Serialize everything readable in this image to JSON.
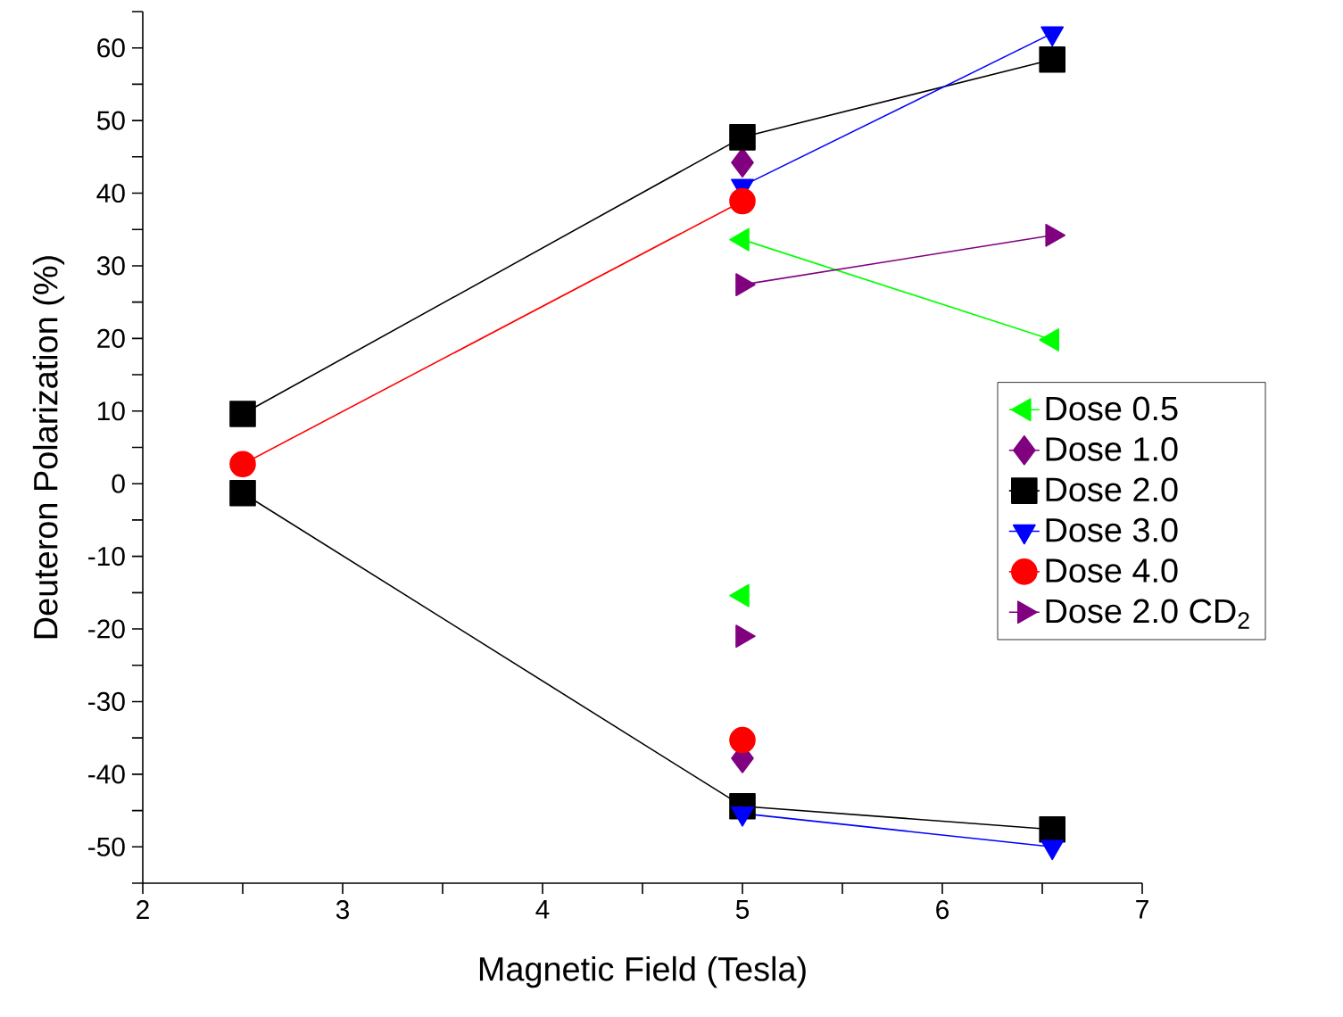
{
  "chart_data": {
    "type": "line",
    "xlabel": "Magnetic Field (Tesla)",
    "ylabel": "Deuteron Polarization (%)",
    "xlim": [
      2,
      7
    ],
    "ylim": [
      -55,
      65
    ],
    "xticks": [
      2,
      {
        "value": 2.5,
        "label": null
      },
      3,
      {
        "value": 3.5,
        "label": null
      },
      4,
      {
        "value": 4.5,
        "label": null
      },
      5,
      {
        "value": 5.5,
        "label": null
      },
      6,
      {
        "value": 6.5,
        "label": null
      },
      7
    ],
    "yticks": [
      {
        "value": -55,
        "label": null
      },
      -50,
      {
        "value": -45,
        "label": null
      },
      -40,
      {
        "value": -35,
        "label": null
      },
      -30,
      {
        "value": -25,
        "label": null
      },
      -20,
      {
        "value": -15,
        "label": null
      },
      -10,
      {
        "value": -5,
        "label": null
      },
      0,
      {
        "value": 5,
        "label": null
      },
      10,
      {
        "value": 15,
        "label": null
      },
      20,
      {
        "value": 25,
        "label": null
      },
      30,
      {
        "value": 35,
        "label": null
      },
      40,
      {
        "value": 45,
        "label": null
      },
      50,
      {
        "value": 55,
        "label": null
      },
      60,
      {
        "value": 65,
        "label": null
      }
    ],
    "legend": "right",
    "grid": false,
    "series": [
      {
        "name": "Dose 0.5",
        "color": "#00ff00",
        "marker": "triangle-left",
        "x": [
          5,
          6.55
        ],
        "values": [
          33.6,
          19.8
        ]
      },
      {
        "name": "Dose 1.0",
        "color": "#800080",
        "marker": "diamond",
        "x": [
          5
        ],
        "values": [
          44.2
        ]
      },
      {
        "name": "Dose 2.0",
        "color": "#000000",
        "marker": "square",
        "x": [
          2.5,
          5,
          6.55
        ],
        "values": [
          9.6,
          47.7,
          58.4
        ]
      },
      {
        "name": "Dose 3.0",
        "color": "#0000ff",
        "marker": "triangle-down",
        "x": [
          5,
          6.55
        ],
        "values": [
          41,
          62
        ]
      },
      {
        "name": "Dose 4.0",
        "color": "#ff0000",
        "marker": "circle",
        "x": [
          2.5,
          5
        ],
        "values": [
          2.7,
          38.9
        ]
      },
      {
        "name": "Dose 2.0 CD$_{2}$",
        "color": "#800080",
        "marker": "triangle-right",
        "x": [
          5,
          6.55
        ],
        "values": [
          27.4,
          34.2
        ]
      },
      {
        "color": "#00ff00",
        "marker": "triangle-left",
        "x": [
          5
        ],
        "values": [
          -15.4
        ]
      },
      {
        "color": "#800080",
        "marker": "diamond",
        "x": [
          5
        ],
        "values": [
          -37.8
        ]
      },
      {
        "color": "#000000",
        "marker": "square",
        "x": [
          2.5,
          5,
          6.55
        ],
        "values": [
          -1.3,
          -44.4,
          -47.6
        ]
      },
      {
        "color": "#0000ff",
        "marker": "triangle-down",
        "x": [
          5,
          6.55
        ],
        "values": [
          -45.4,
          -50
        ]
      },
      {
        "color": "#ff0000",
        "marker": "circle",
        "x": [
          5
        ],
        "values": [
          -35.3
        ]
      },
      {
        "color": "#800080",
        "marker": "triangle-right",
        "x": [
          5
        ],
        "values": [
          -21
        ]
      }
    ]
  }
}
